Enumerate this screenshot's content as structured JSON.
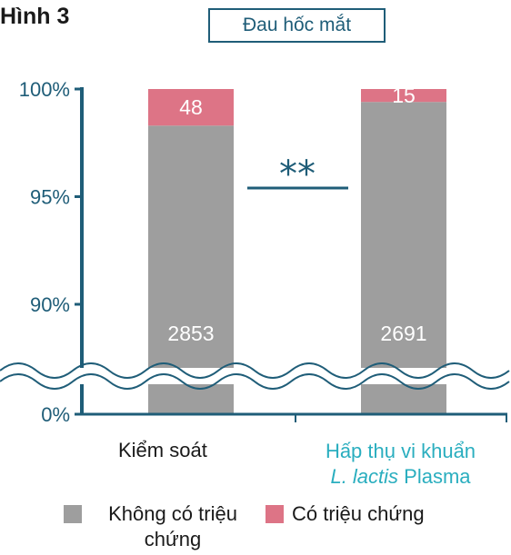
{
  "figure_label": "Hình 3",
  "chart_data": {
    "type": "bar",
    "stacked": true,
    "title": "Đau hốc mắt",
    "categories": [
      "Kiểm soát",
      "Hấp thụ vi khuẩn L. lactis Plasma"
    ],
    "category_label_parts": [
      {
        "line1": "Kiểm soát"
      },
      {
        "line1": "Hấp thụ vi khuẩn",
        "line2_italic": "L. lactis",
        "line2_rest": " Plasma"
      }
    ],
    "y_ticks": [
      "100%",
      "95%",
      "90%",
      "0%"
    ],
    "y_axis_break": true,
    "ylim_upper_segment": [
      88,
      100
    ],
    "series": [
      {
        "name": "Không có triệu chứng",
        "color": "#9e9e9e",
        "counts": [
          2853,
          2691
        ],
        "percent": [
          98.3,
          99.4
        ]
      },
      {
        "name": "Có triệu chứng",
        "color": "#dd7486",
        "counts": [
          48,
          15
        ],
        "percent": [
          1.7,
          0.6
        ]
      }
    ],
    "significance": "**",
    "legend_position": "bottom"
  }
}
